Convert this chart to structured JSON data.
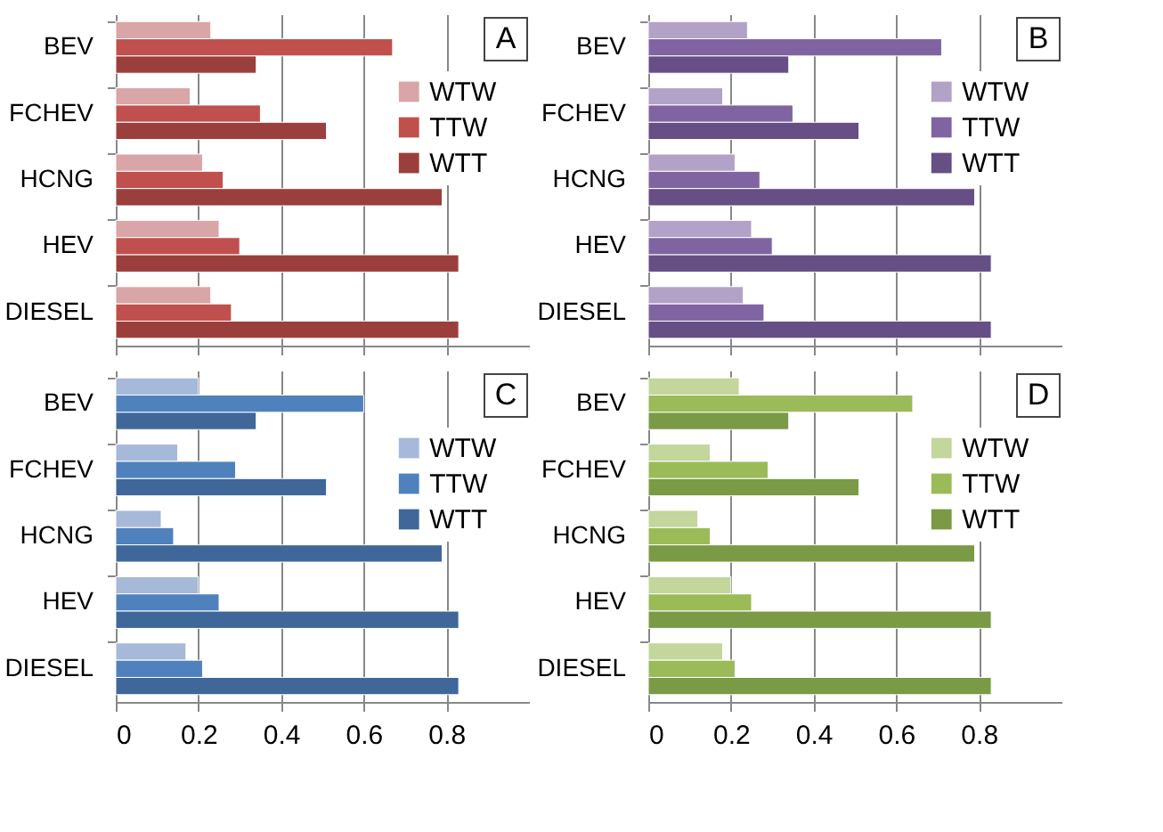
{
  "chart_data": [
    {
      "type": "bar",
      "orientation": "horizontal",
      "categories": [
        "BEV",
        "FCHEV",
        "HCNG",
        "HEV",
        "DIESEL"
      ],
      "series": [
        {
          "name": "WTW",
          "color": "#d9a5a6",
          "values": [
            0.23,
            0.18,
            0.21,
            0.25,
            0.23
          ]
        },
        {
          "name": "TTW",
          "color": "#c0504d",
          "values": [
            0.67,
            0.35,
            0.26,
            0.3,
            0.28
          ]
        },
        {
          "name": "WTT",
          "color": "#9b3f3d",
          "values": [
            0.34,
            0.51,
            0.79,
            0.83,
            0.83
          ]
        }
      ],
      "xlim": [
        0,
        1
      ],
      "xticks": [
        0,
        0.2,
        0.4,
        0.6,
        0.8
      ],
      "grid": "x",
      "legend": "top right",
      "tick_labels": "y",
      "annotations": [
        "A"
      ]
    },
    {
      "type": "bar",
      "orientation": "horizontal",
      "categories": [
        "BEV",
        "FCHEV",
        "HCNG",
        "HEV",
        "DIESEL"
      ],
      "series": [
        {
          "name": "WTW",
          "color": "#b3a2c7",
          "values": [
            0.24,
            0.18,
            0.21,
            0.25,
            0.23
          ]
        },
        {
          "name": "TTW",
          "color": "#8064a2",
          "values": [
            0.71,
            0.35,
            0.27,
            0.3,
            0.28
          ]
        },
        {
          "name": "WTT",
          "color": "#664f84",
          "values": [
            0.34,
            0.51,
            0.79,
            0.83,
            0.83
          ]
        }
      ],
      "xlim": [
        0,
        1
      ],
      "xticks": [
        0,
        0.2,
        0.4,
        0.6,
        0.8
      ],
      "grid": "x",
      "legend": "top right",
      "tick_labels": "y",
      "annotations": [
        "B"
      ]
    },
    {
      "type": "bar",
      "orientation": "horizontal",
      "categories": [
        "BEV",
        "FCHEV",
        "HCNG",
        "HEV",
        "DIESEL"
      ],
      "series": [
        {
          "name": "WTW",
          "color": "#a7b9d9",
          "values": [
            0.2,
            0.15,
            0.11,
            0.2,
            0.17
          ]
        },
        {
          "name": "TTW",
          "color": "#4f81bd",
          "values": [
            0.6,
            0.29,
            0.14,
            0.25,
            0.21
          ]
        },
        {
          "name": "WTT",
          "color": "#3f679a",
          "values": [
            0.34,
            0.51,
            0.79,
            0.83,
            0.83
          ]
        }
      ],
      "xlim": [
        0,
        1
      ],
      "xticks": [
        0,
        0.2,
        0.4,
        0.6,
        0.8
      ],
      "grid": "x",
      "legend": "top right",
      "annotations": [
        "C"
      ]
    },
    {
      "type": "bar",
      "orientation": "horizontal",
      "categories": [
        "BEV",
        "FCHEV",
        "HCNG",
        "HEV",
        "DIESEL"
      ],
      "series": [
        {
          "name": "WTW",
          "color": "#c3d69b",
          "values": [
            0.22,
            0.15,
            0.12,
            0.2,
            0.18
          ]
        },
        {
          "name": "TTW",
          "color": "#9bbb59",
          "values": [
            0.64,
            0.29,
            0.15,
            0.25,
            0.21
          ]
        },
        {
          "name": "WTT",
          "color": "#7a9a46",
          "values": [
            0.34,
            0.51,
            0.79,
            0.83,
            0.83
          ]
        }
      ],
      "xlim": [
        0,
        1
      ],
      "xticks": [
        0,
        0.2,
        0.4,
        0.6,
        0.8
      ],
      "grid": "x",
      "legend": "top right",
      "annotations": [
        "D"
      ]
    }
  ]
}
